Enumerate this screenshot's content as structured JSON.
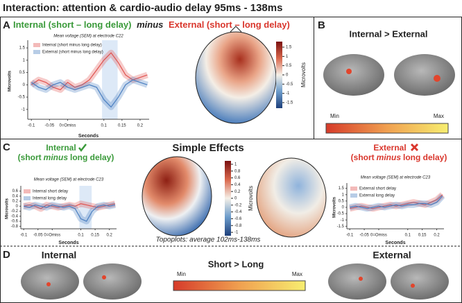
{
  "title": "Interaction: attention & cardio-audio delay 95ms - 138ms",
  "panels": {
    "a": {
      "letter": "A",
      "internal": "Internal (short – long delay)",
      "minus": "minus",
      "external": "External (short – long delay)",
      "colorbar": {
        "label": "Microvolts",
        "lim": [
          -1.8,
          1.8
        ],
        "ticks": [
          1.5,
          1,
          0.5,
          0,
          -0.5,
          -1,
          -1.5
        ]
      }
    },
    "b": {
      "letter": "B",
      "heading": "Internal > External",
      "min": "Min",
      "max": "Max"
    },
    "c": {
      "letter": "C",
      "internal": "Internal",
      "external": "External",
      "sub": [
        "(short",
        "minus",
        "long delay)"
      ],
      "heading": "Simple Effects",
      "note": "Topoplots: average 102ms-138ms",
      "colorbar": {
        "label": "Microvolts",
        "lim": [
          -1.1,
          1.1
        ],
        "ticks": [
          1,
          0.8,
          0.6,
          0.4,
          0.2,
          0,
          -0.2,
          -0.4,
          -0.6,
          -0.8,
          -1
        ]
      }
    },
    "d": {
      "letter": "D",
      "internal": "Internal",
      "heading": "Short > Long",
      "external": "External",
      "min": "Min",
      "max": "Max"
    }
  },
  "chart_data": [
    {
      "type": "line",
      "title": "Mean voltage (SEM) at electrode C22",
      "x_label": "Seconds",
      "y_label": "Microvolts",
      "x": [
        -0.1,
        -0.08,
        -0.06,
        -0.04,
        -0.02,
        0,
        0.02,
        0.04,
        0.06,
        0.08,
        0.1,
        0.12,
        0.14,
        0.16,
        0.18,
        0.2,
        0.22
      ],
      "series": [
        {
          "name": "Internal (short minus long delay)",
          "color": "#e0524f",
          "values": [
            0,
            0.2,
            0.1,
            -0.1,
            -0.2,
            0.1,
            -0.1,
            0,
            0.2,
            0.6,
            1.0,
            1.3,
            0.9,
            0.4,
            0.2,
            0.3,
            0.4
          ]
        },
        {
          "name": "External (short minus long delay)",
          "color": "#4a7fc1",
          "values": [
            0.1,
            -0.1,
            -0.2,
            0,
            0.1,
            -0.1,
            -0.2,
            -0.1,
            0,
            -0.1,
            -0.6,
            -0.9,
            -0.5,
            0,
            0.2,
            0.1,
            0
          ]
        }
      ],
      "highlight": [
        0.095,
        0.138
      ],
      "xlim": [
        -0.11,
        0.225
      ],
      "ylim": [
        -1.4,
        1.7
      ],
      "xticks": [
        -0.1,
        -0.05,
        {
          "value": 0,
          "label": "0=Omiss"
        },
        0.1,
        0.15,
        0.2
      ],
      "yticks": [
        1.5,
        1,
        0.5,
        0,
        -0.5,
        -1
      ]
    },
    {
      "type": "line",
      "title": "Mean voltage (SEM) at electrode C23",
      "x_label": "Seconds",
      "y_label": "Microvolts",
      "x": [
        -0.1,
        -0.08,
        -0.06,
        -0.04,
        -0.02,
        0,
        0.02,
        0.04,
        0.06,
        0.08,
        0.1,
        0.12,
        0.14,
        0.16,
        0.18,
        0.2,
        0.22
      ],
      "series": [
        {
          "name": "Internal short delay",
          "color": "#e0524f",
          "values": [
            0,
            0.05,
            0,
            -0.1,
            0.05,
            0,
            -0.05,
            0,
            0.05,
            0,
            0.1,
            0.05,
            0,
            -0.05,
            0,
            0.05,
            0.1
          ]
        },
        {
          "name": "Internal long delay",
          "color": "#4a7fc1",
          "values": [
            0,
            -0.05,
            0.05,
            0,
            -0.05,
            0.05,
            0,
            -0.05,
            0,
            -0.1,
            -0.5,
            -0.6,
            -0.2,
            0,
            0.05,
            0,
            0.05
          ]
        }
      ],
      "highlight": [
        0.095,
        0.138
      ],
      "xlim": [
        -0.11,
        0.225
      ],
      "ylim": [
        -0.9,
        0.7
      ],
      "xticks": [
        -0.1,
        -0.05,
        {
          "value": 0,
          "label": "0=Omiss"
        },
        0.1,
        0.15,
        0.2
      ],
      "yticks": [
        0.6,
        0.4,
        0.2,
        0,
        -0.2,
        -0.4,
        -0.6,
        -0.8
      ]
    },
    {
      "type": "line",
      "title": "Mean voltage (SEM) at electrode C23",
      "x_label": "Seconds",
      "y_label": "Microvolts",
      "x": [
        -0.1,
        -0.08,
        -0.06,
        -0.04,
        -0.02,
        0,
        0.02,
        0.04,
        0.06,
        0.08,
        0.1,
        0.12,
        0.14,
        0.16,
        0.18,
        0.2,
        0.22
      ],
      "series": [
        {
          "name": "External short delay",
          "color": "#e0524f",
          "values": [
            -0.1,
            0,
            0.1,
            0,
            -0.1,
            0,
            0.1,
            0.2,
            0.1,
            0.2,
            0.3,
            0.4,
            0.3,
            0.2,
            0.4,
            0.6,
            1.0
          ]
        },
        {
          "name": "External long delay",
          "color": "#4a7fc1",
          "values": [
            0,
            0.1,
            0,
            -0.1,
            0,
            0.1,
            0,
            0.1,
            0.2,
            0.1,
            0.2,
            0.2,
            0.3,
            0.3,
            0.2,
            0.4,
            0.9
          ]
        }
      ],
      "xlim": [
        -0.11,
        0.225
      ],
      "ylim": [
        -1.7,
        1.7
      ],
      "xticks": [
        -0.1,
        -0.05,
        {
          "value": 0,
          "label": "0=Omiss"
        },
        0.1,
        0.15,
        0.2
      ],
      "yticks": [
        1.5,
        1,
        0.5,
        0,
        -0.5,
        -1,
        -1.5
      ]
    }
  ]
}
